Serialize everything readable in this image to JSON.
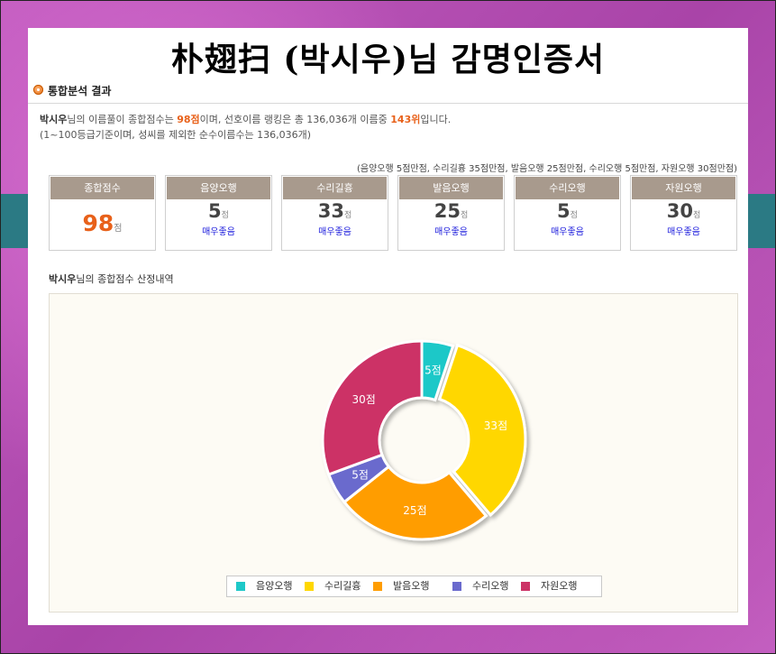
{
  "title": "朴翅扫 (박시우)님 감명인증서",
  "section_title": "통합분석 결과",
  "summary": {
    "name": "박시우",
    "t1": "님의 이름풀이 종합점수는 ",
    "score": "98점",
    "t2": "이며, 선호이름 랭킹은 총 136,036개 이름중 ",
    "rank": "143위",
    "t3": "입니다.",
    "line2": "(1~100등급기준이며, 성씨를 제외한 순수이름수는 136,036개)"
  },
  "max_note": "(음양오행 5점만점, 수리길흉 35점만점, 발음오행 25점만점, 수리오행 5점만점, 자원오행 30점만점)",
  "total_card": {
    "label": "종합점수",
    "value": "98",
    "unit": "점"
  },
  "score_cards": [
    {
      "label": "음양오행",
      "value": "5",
      "unit": "점",
      "grade": "매우좋음"
    },
    {
      "label": "수리길흉",
      "value": "33",
      "unit": "점",
      "grade": "매우좋음"
    },
    {
      "label": "발음오행",
      "value": "25",
      "unit": "점",
      "grade": "매우좋음"
    },
    {
      "label": "수리오행",
      "value": "5",
      "unit": "점",
      "grade": "매우좋음"
    },
    {
      "label": "자원오행",
      "value": "30",
      "unit": "점",
      "grade": "매우좋음"
    }
  ],
  "chart_caption": {
    "name": "박시우",
    "text": "님의 종합점수 산정내역"
  },
  "chart_data": {
    "type": "pie",
    "style": "donut",
    "categories": [
      "음양오행",
      "수리길흉",
      "발음오행",
      "수리오행",
      "자원오행"
    ],
    "values": [
      5,
      33,
      25,
      5,
      30
    ],
    "slice_labels": [
      "5점",
      "33점",
      "25점",
      "5점",
      "30점"
    ],
    "colors": [
      "#1ec8c8",
      "#ffd700",
      "#ff9d00",
      "#6a6acd",
      "#cc3366"
    ],
    "legend_position": "bottom"
  },
  "colors": {
    "accent": "#e8611a",
    "card_header": "#a89a8d",
    "grade_text": "#1a1adc"
  }
}
